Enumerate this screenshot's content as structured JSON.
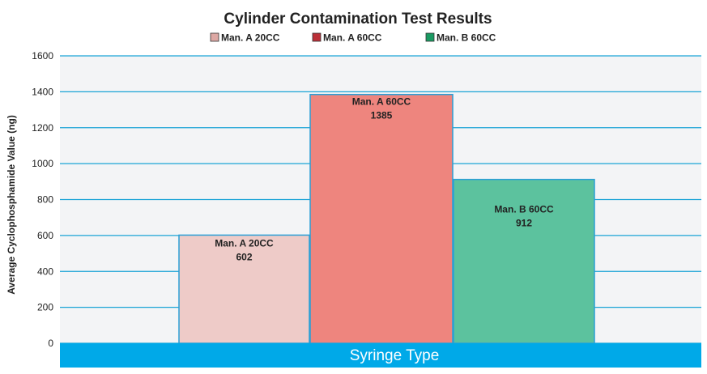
{
  "chart_data": {
    "type": "bar",
    "title": "Cylinder Contamination Test Results",
    "xlabel": "Syringe Type",
    "ylabel": "Average Cyclophosphamide Value (ng)",
    "ylim": [
      0,
      1600
    ],
    "yticks": [
      0,
      200,
      400,
      600,
      800,
      1000,
      1200,
      1400,
      1600
    ],
    "grid": true,
    "legend_position": "top",
    "series": [
      {
        "name": "Man. A 20CC",
        "value": 602,
        "value_label": "602",
        "fill": "#eecbc8",
        "legend_color": "#dda8a4"
      },
      {
        "name": "Man. A 60CC",
        "value": 1385,
        "value_label": "1385",
        "fill": "#ee857e",
        "legend_color": "#bb3038"
      },
      {
        "name": "Man. B 60CC",
        "value": 912,
        "value_label": "912",
        "fill": "#5cc29e",
        "legend_color": "#1a9a62"
      }
    ],
    "colors": {
      "bar_border": "#2a9fd6",
      "grid": "#1aa3d6",
      "plot_background": "#f3f4f6",
      "x_band": "#00a9e8"
    }
  }
}
